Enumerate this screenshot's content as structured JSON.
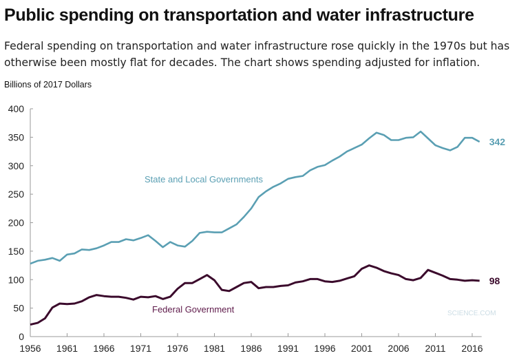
{
  "title": "Public spending on transportation and water infrastructure",
  "subtitle": "Federal spending on transportation and water infrastructure rose quickly in the 1970s but has otherwise been mostly flat for decades. The chart shows spending adjusted for inflation.",
  "watermark": "SCIENCE.COM",
  "chart_data": {
    "type": "line",
    "ylabel": "Billions of 2017 Dollars",
    "xlabel": "",
    "xlim": [
      1956,
      2017
    ],
    "ylim": [
      0,
      400
    ],
    "xticks": [
      1956,
      1961,
      1966,
      1971,
      1976,
      1981,
      1986,
      1991,
      1996,
      2001,
      2006,
      2011,
      2016
    ],
    "yticks": [
      0,
      50,
      100,
      150,
      200,
      250,
      300,
      350,
      400
    ],
    "grid": false,
    "legend": "inline labels",
    "x": [
      1956,
      1957,
      1958,
      1959,
      1960,
      1961,
      1962,
      1963,
      1964,
      1965,
      1966,
      1967,
      1968,
      1969,
      1970,
      1971,
      1972,
      1973,
      1974,
      1975,
      1976,
      1977,
      1978,
      1979,
      1980,
      1981,
      1982,
      1983,
      1984,
      1985,
      1986,
      1987,
      1988,
      1989,
      1990,
      1991,
      1992,
      1993,
      1994,
      1995,
      1996,
      1997,
      1998,
      1999,
      2000,
      2001,
      2002,
      2003,
      2004,
      2005,
      2006,
      2007,
      2008,
      2009,
      2010,
      2011,
      2012,
      2013,
      2014,
      2015,
      2016,
      2017
    ],
    "series": [
      {
        "name": "State and Local Governments",
        "color": "#5a9fb3",
        "end_label": "342",
        "values": [
          128,
          133,
          135,
          138,
          133,
          144,
          146,
          153,
          152,
          155,
          160,
          166,
          166,
          171,
          169,
          173,
          178,
          168,
          157,
          166,
          160,
          158,
          168,
          182,
          184,
          183,
          183,
          190,
          197,
          210,
          225,
          245,
          255,
          263,
          269,
          277,
          280,
          282,
          292,
          298,
          301,
          309,
          316,
          325,
          331,
          337,
          348,
          358,
          354,
          345,
          345,
          349,
          350,
          360,
          348,
          336,
          331,
          327,
          333,
          349,
          349,
          342
        ]
      },
      {
        "name": "Federal Government",
        "color": "#3b0a2c",
        "label_color": "#5e1a4a",
        "end_label": "98",
        "values": [
          21,
          24,
          32,
          51,
          58,
          57,
          58,
          62,
          69,
          73,
          71,
          70,
          70,
          68,
          65,
          70,
          69,
          71,
          66,
          70,
          84,
          94,
          94,
          101,
          108,
          99,
          82,
          80,
          87,
          94,
          96,
          85,
          87,
          87,
          89,
          90,
          95,
          97,
          101,
          101,
          97,
          96,
          98,
          102,
          106,
          119,
          125,
          121,
          115,
          111,
          108,
          101,
          99,
          103,
          117,
          112,
          107,
          101,
          100,
          98,
          99,
          98
        ]
      }
    ]
  }
}
